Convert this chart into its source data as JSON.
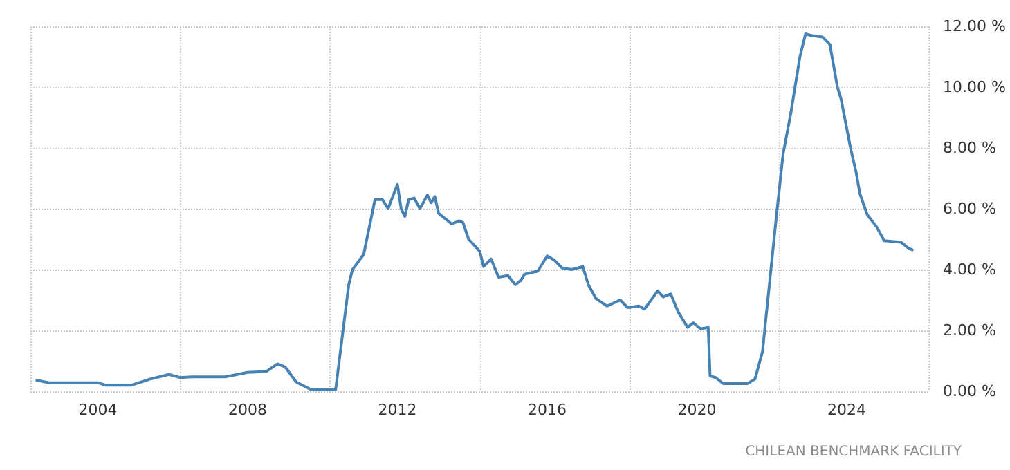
{
  "chart_data": {
    "type": "line",
    "annotations": [
      "CHILEAN BENCHMARK FACILITY"
    ],
    "xlim": [
      2002.2,
      2026.2
    ],
    "xticks": [
      2004,
      2008,
      2012,
      2016,
      2020,
      2024
    ],
    "ylim": [
      0,
      12
    ],
    "yticks": [
      {
        "value": 0,
        "label": "0.00 %"
      },
      {
        "value": 2,
        "label": "2.00 %"
      },
      {
        "value": 4,
        "label": "4.00 %"
      },
      {
        "value": 6,
        "label": "6.00 %"
      },
      {
        "value": 8,
        "label": "8.00 %"
      },
      {
        "value": 10,
        "label": "10.00 %"
      },
      {
        "value": 12,
        "label": "12.00 %"
      }
    ],
    "grid": true,
    "marker": "none",
    "line_style": "solid",
    "series": [
      {
        "color": "#4682b4",
        "x": [
          2002.37,
          2002.7,
          2004,
          2004.2,
          2004.9,
          2005.4,
          2005.9,
          2006.2,
          2006.5,
          2007.4,
          2008,
          2008.5,
          2008.8,
          2009,
          2009.3,
          2009.7,
          2010.35,
          2010.7,
          2010.8,
          2011.1,
          2011.4,
          2011.6,
          2011.75,
          2012,
          2012.1,
          2012.2,
          2012.3,
          2012.45,
          2012.6,
          2012.8,
          2012.9,
          2013,
          2013.1,
          2013.45,
          2013.65,
          2013.75,
          2013.9,
          2014.2,
          2014.3,
          2014.5,
          2014.7,
          2014.95,
          2015.15,
          2015.3,
          2015.4,
          2015.75,
          2016,
          2016.2,
          2016.4,
          2016.65,
          2016.95,
          2017.1,
          2017.3,
          2017.6,
          2017.95,
          2018.15,
          2018.45,
          2018.6,
          2018.95,
          2019.1,
          2019.3,
          2019.5,
          2019.75,
          2019.9,
          2020.1,
          2020.3,
          2020.35,
          2020.5,
          2020.7,
          2021.35,
          2021.55,
          2021.75,
          2022.1,
          2022.3,
          2022.5,
          2022.75,
          2022.9,
          2023.05,
          2023.35,
          2023.55,
          2023.75,
          2023.85,
          2024.1,
          2024.25,
          2024.35,
          2024.55,
          2024.8,
          2025,
          2025.45,
          2025.65,
          2025.75
        ],
        "values": [
          0.36,
          0.28,
          0.28,
          0.2,
          0.2,
          0.4,
          0.55,
          0.45,
          0.47,
          0.47,
          0.62,
          0.65,
          0.9,
          0.8,
          0.3,
          0.05,
          0.05,
          3.5,
          4.0,
          4.5,
          6.3,
          6.3,
          6.0,
          6.8,
          6.0,
          5.75,
          6.3,
          6.35,
          6.0,
          6.45,
          6.2,
          6.4,
          5.85,
          5.5,
          5.6,
          5.55,
          5.0,
          4.6,
          4.1,
          4.35,
          3.75,
          3.8,
          3.5,
          3.65,
          3.85,
          3.95,
          4.45,
          4.3,
          4.05,
          4.0,
          4.1,
          3.5,
          3.05,
          2.8,
          3.0,
          2.75,
          2.8,
          2.7,
          3.3,
          3.1,
          3.2,
          2.6,
          2.1,
          2.25,
          2.05,
          2.1,
          0.5,
          0.45,
          0.25,
          0.25,
          0.4,
          1.3,
          5.5,
          7.8,
          9.1,
          11.0,
          11.75,
          11.7,
          11.65,
          11.4,
          10.0,
          9.6,
          8.0,
          7.2,
          6.5,
          5.8,
          5.4,
          4.95,
          4.9,
          4.7,
          4.65
        ]
      }
    ]
  }
}
